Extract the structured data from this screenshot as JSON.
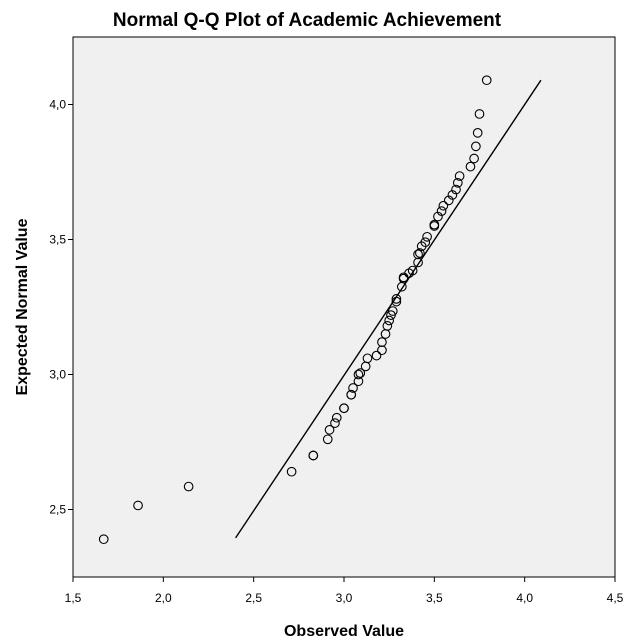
{
  "chart_data": {
    "type": "scatter",
    "title": "Normal Q-Q Plot of Academic Achievement",
    "xlabel": "Observed Value",
    "ylabel": "Expected Normal Value",
    "xlim": [
      1.5,
      4.5
    ],
    "ylim": [
      2.25,
      4.25
    ],
    "x_ticks": [
      1.5,
      2.0,
      2.5,
      3.0,
      3.5,
      4.0,
      4.5
    ],
    "x_tick_labels": [
      "1,5",
      "2,0",
      "2,5",
      "3,0",
      "3,5",
      "4,0",
      "4,5"
    ],
    "y_ticks": [
      2.5,
      3.0,
      3.5,
      4.0
    ],
    "y_tick_labels": [
      "2,5",
      "3,0",
      "3,5",
      "4,0"
    ],
    "grid": false,
    "plot_background": "#f0f0f0",
    "marker": "open-circle",
    "reference_line": {
      "x": [
        2.4,
        4.09
      ],
      "y": [
        2.395,
        4.09
      ]
    },
    "points": [
      [
        1.67,
        2.39
      ],
      [
        1.86,
        2.515
      ],
      [
        2.14,
        2.585
      ],
      [
        2.71,
        2.64
      ],
      [
        2.83,
        2.7
      ],
      [
        2.83,
        2.7
      ],
      [
        2.91,
        2.76
      ],
      [
        2.92,
        2.795
      ],
      [
        2.95,
        2.82
      ],
      [
        2.96,
        2.84
      ],
      [
        3.0,
        2.875
      ],
      [
        3.0,
        2.875
      ],
      [
        3.04,
        2.925
      ],
      [
        3.04,
        2.925
      ],
      [
        3.05,
        2.95
      ],
      [
        3.08,
        2.975
      ],
      [
        3.08,
        3.0
      ],
      [
        3.09,
        3.005
      ],
      [
        3.12,
        3.03
      ],
      [
        3.13,
        3.06
      ],
      [
        3.18,
        3.07
      ],
      [
        3.21,
        3.09
      ],
      [
        3.21,
        3.12
      ],
      [
        3.23,
        3.15
      ],
      [
        3.24,
        3.18
      ],
      [
        3.25,
        3.2
      ],
      [
        3.26,
        3.22
      ],
      [
        3.27,
        3.235
      ],
      [
        3.29,
        3.27
      ],
      [
        3.29,
        3.28
      ],
      [
        3.32,
        3.325
      ],
      [
        3.33,
        3.355
      ],
      [
        3.33,
        3.36
      ],
      [
        3.36,
        3.375
      ],
      [
        3.38,
        3.385
      ],
      [
        3.41,
        3.415
      ],
      [
        3.41,
        3.445
      ],
      [
        3.42,
        3.45
      ],
      [
        3.43,
        3.475
      ],
      [
        3.45,
        3.49
      ],
      [
        3.46,
        3.51
      ],
      [
        3.5,
        3.55
      ],
      [
        3.5,
        3.555
      ],
      [
        3.52,
        3.585
      ],
      [
        3.54,
        3.605
      ],
      [
        3.55,
        3.625
      ],
      [
        3.58,
        3.645
      ],
      [
        3.6,
        3.665
      ],
      [
        3.62,
        3.685
      ],
      [
        3.63,
        3.71
      ],
      [
        3.64,
        3.735
      ],
      [
        3.7,
        3.77
      ],
      [
        3.72,
        3.8
      ],
      [
        3.73,
        3.845
      ],
      [
        3.74,
        3.895
      ],
      [
        3.75,
        3.965
      ],
      [
        3.79,
        4.09
      ]
    ]
  }
}
